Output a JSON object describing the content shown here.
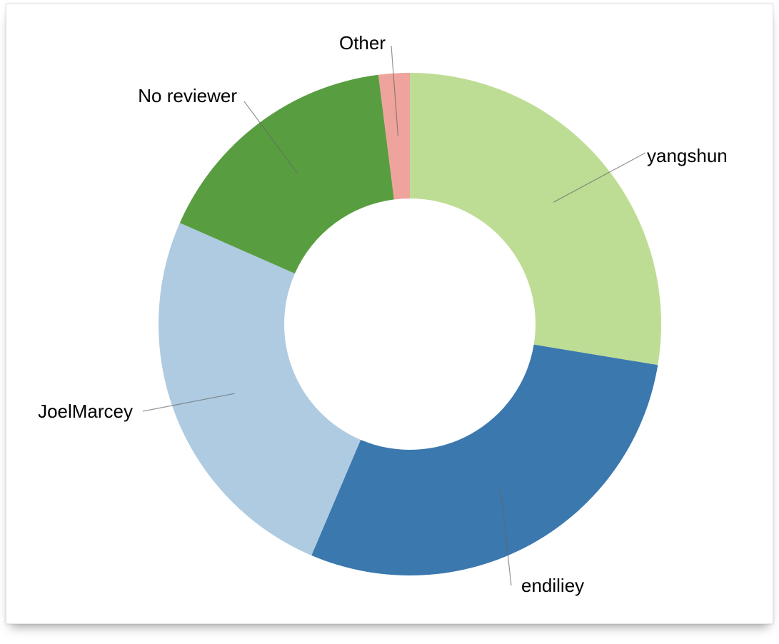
{
  "chart_data": {
    "type": "pie",
    "donut": true,
    "title": "",
    "slices": [
      {
        "label": "yangshun",
        "value": 27.6,
        "color": "#bedd94"
      },
      {
        "label": "endiliey",
        "value": 28.8,
        "color": "#3a78ae"
      },
      {
        "label": "JoelMarcey",
        "value": 25.2,
        "color": "#aecbe1"
      },
      {
        "label": "No reviewer",
        "value": 16.4,
        "color": "#589e40"
      },
      {
        "label": "Other",
        "value": 2.0,
        "color": "#efa39d"
      }
    ]
  }
}
